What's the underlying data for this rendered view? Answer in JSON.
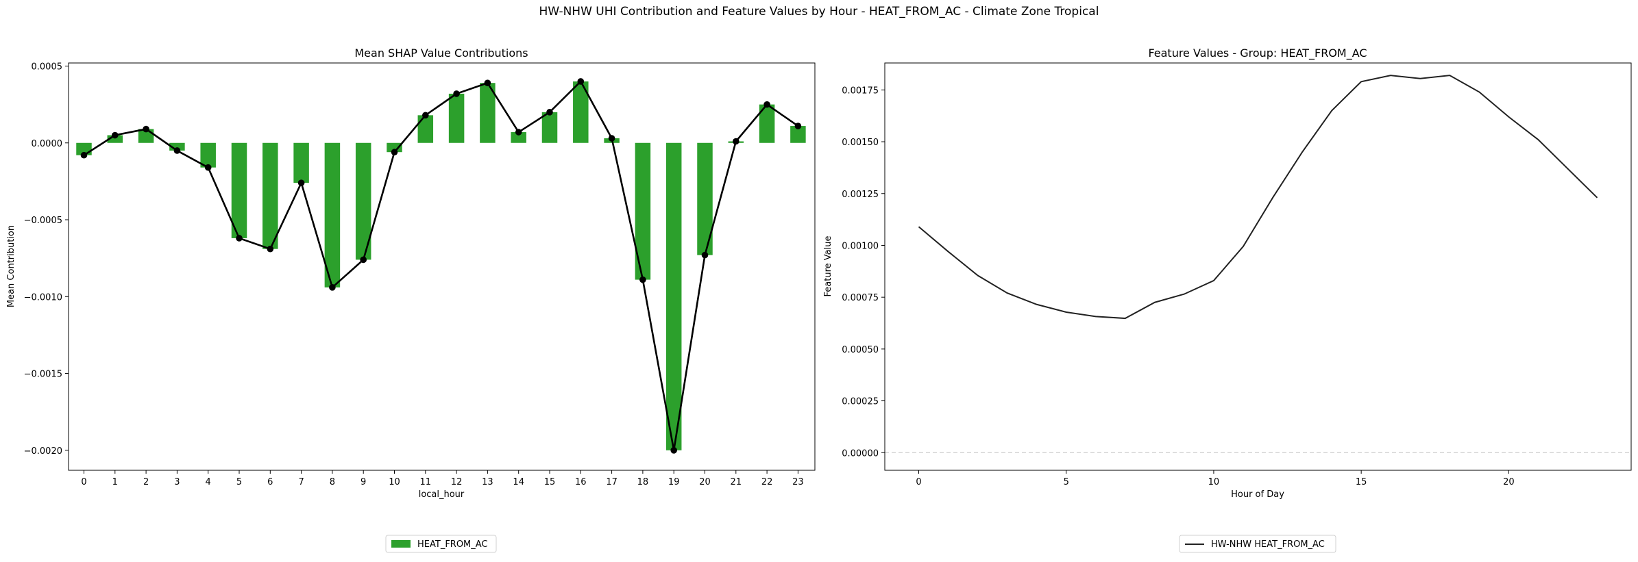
{
  "figure": {
    "suptitle": "HW-NHW UHI Contribution and Feature Values by Hour - HEAT_FROM_AC - Climate Zone Tropical"
  },
  "chart_data": [
    {
      "type": "bar",
      "title": "Mean SHAP Value Contributions",
      "xlabel": "local_hour",
      "ylabel": "Mean Contribution",
      "categories": [
        "0",
        "1",
        "2",
        "3",
        "4",
        "5",
        "6",
        "7",
        "8",
        "9",
        "10",
        "11",
        "12",
        "13",
        "14",
        "15",
        "16",
        "17",
        "18",
        "19",
        "20",
        "21",
        "22",
        "23"
      ],
      "series": [
        {
          "name": "HEAT_FROM_AC",
          "color": "#2ca02c",
          "values": [
            -8e-05,
            5e-05,
            9e-05,
            -5e-05,
            -0.00016,
            -0.00062,
            -0.00069,
            -0.00026,
            -0.00094,
            -0.00076,
            -6e-05,
            0.00018,
            0.00032,
            0.00039,
            7e-05,
            0.0002,
            0.0004,
            3e-05,
            -0.00089,
            -0.002,
            -0.00073,
            1e-05,
            0.00025,
            0.00011
          ]
        }
      ],
      "overlay_line": {
        "color": "#000000",
        "values": [
          -8e-05,
          5e-05,
          9e-05,
          -5e-05,
          -0.00016,
          -0.00062,
          -0.00069,
          -0.00026,
          -0.00094,
          -0.00076,
          -6e-05,
          0.00018,
          0.00032,
          0.00039,
          7e-05,
          0.0002,
          0.0004,
          3e-05,
          -0.00089,
          -0.002,
          -0.00073,
          1e-05,
          0.00025,
          0.00011
        ]
      },
      "ylim": [
        -0.00213,
        0.00052
      ],
      "yticks": [
        0.0005,
        0.0,
        -0.0005,
        -0.001,
        -0.0015,
        -0.002
      ],
      "ytick_labels": [
        "0.0005",
        "0.0000",
        "−0.0005",
        "−0.0010",
        "−0.0015",
        "−0.0020"
      ],
      "grid": false,
      "legend": {
        "entries": [
          "HEAT_FROM_AC"
        ],
        "placement": "bottom-center"
      }
    },
    {
      "type": "line",
      "title": "Feature Values - Group: HEAT_FROM_AC",
      "xlabel": "Hour of Day",
      "ylabel": "Feature Value",
      "x": [
        0,
        1,
        2,
        3,
        4,
        5,
        6,
        7,
        8,
        9,
        10,
        11,
        12,
        13,
        14,
        15,
        16,
        17,
        18,
        19,
        20,
        21,
        22,
        23
      ],
      "series": [
        {
          "name": "HW-NHW HEAT_FROM_AC",
          "color": "#222222",
          "values": [
            0.00109,
            0.00097,
            0.000855,
            0.00077,
            0.000715,
            0.000678,
            0.000657,
            0.000648,
            0.000725,
            0.000765,
            0.00083,
            0.000995,
            0.00123,
            0.00145,
            0.00165,
            0.00179,
            0.00182,
            0.001805,
            0.00182,
            0.00174,
            0.00162,
            0.00151,
            0.00137,
            0.00123
          ]
        }
      ],
      "xlim": [
        -1.15,
        24.15
      ],
      "ylim": [
        -8.5e-05,
        0.00188
      ],
      "xticks": [
        0,
        5,
        10,
        15,
        20
      ],
      "xtick_labels": [
        "0",
        "5",
        "10",
        "15",
        "20"
      ],
      "yticks": [
        0.0,
        0.00025,
        0.0005,
        0.00075,
        0.001,
        0.00125,
        0.0015,
        0.00175
      ],
      "ytick_labels": [
        "0.00000",
        "0.00025",
        "0.00050",
        "0.00075",
        "0.00100",
        "0.00125",
        "0.00150",
        "0.00175"
      ],
      "reference_line": {
        "y": 0,
        "style": "dashed",
        "color": "#cccccc"
      },
      "grid": false,
      "legend": {
        "entries": [
          "HW-NHW HEAT_FROM_AC"
        ],
        "placement": "bottom-center"
      }
    }
  ]
}
